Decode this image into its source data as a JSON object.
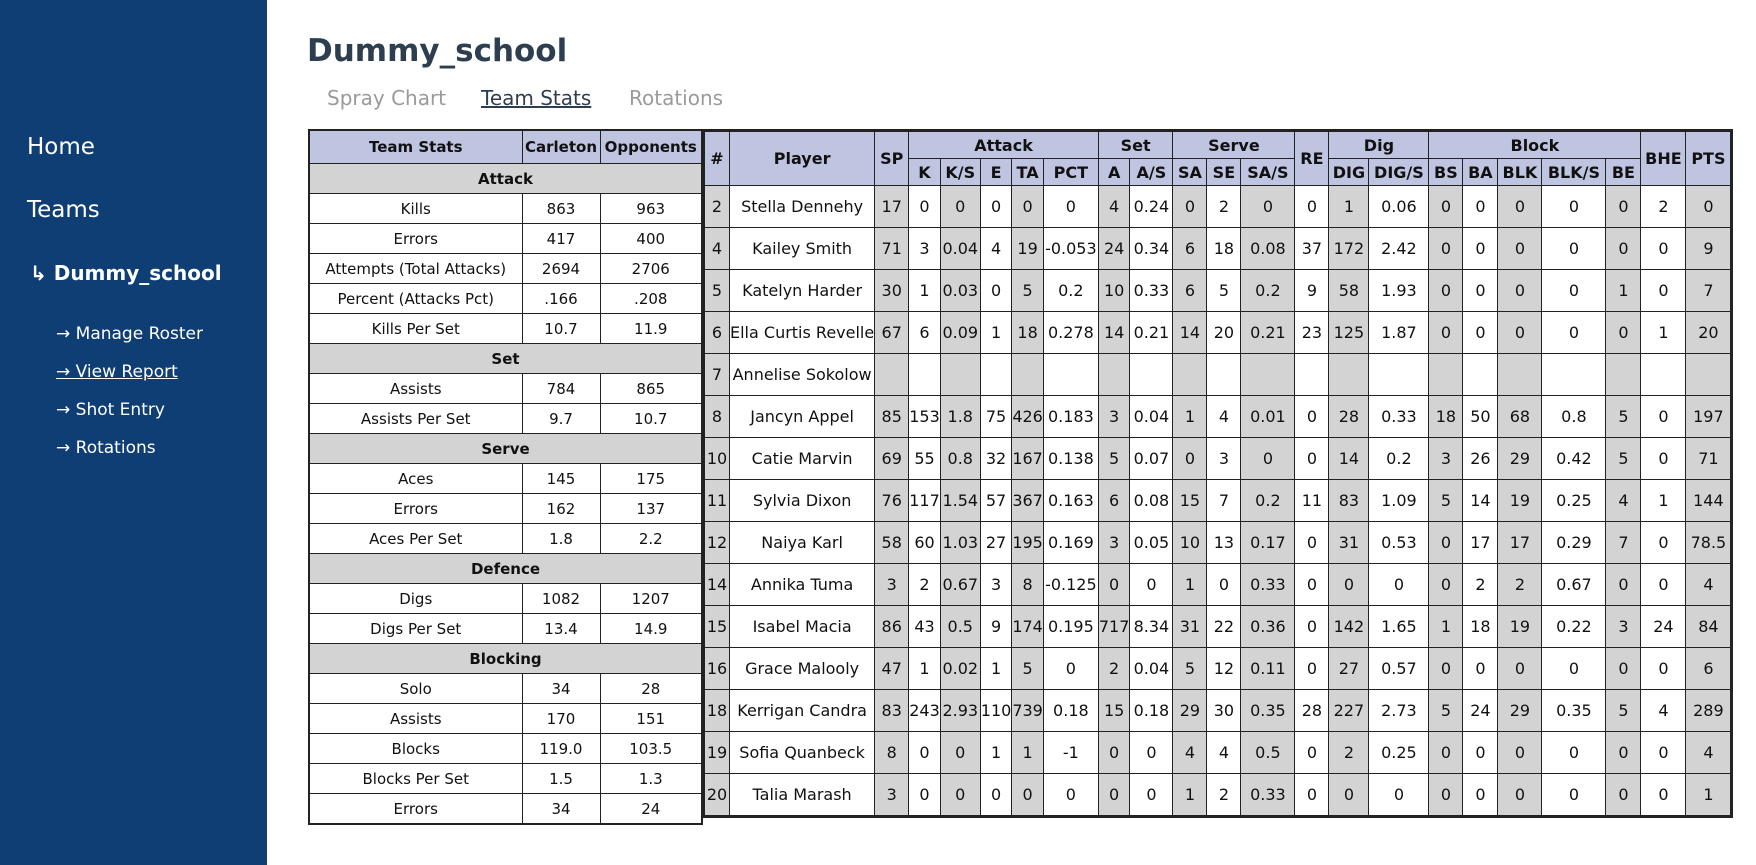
{
  "sidebar": {
    "links": [
      "Home",
      "Teams"
    ],
    "current": "↳ Dummy_school",
    "sublinks": [
      "→ Manage Roster",
      "→ View Report",
      "→ Shot Entry",
      "→ Rotations"
    ]
  },
  "header": {
    "title": "Dummy_school",
    "tabs": [
      "Spray Chart",
      "Team Stats",
      "Rotations"
    ]
  },
  "team_table": {
    "columns": [
      "Team Stats",
      "Carleton",
      "Opponents"
    ],
    "sections": [
      {
        "title": "Attack",
        "rows": [
          [
            "Kills",
            "863",
            "963"
          ],
          [
            "Errors",
            "417",
            "400"
          ],
          [
            "Attempts (Total Attacks)",
            "2694",
            "2706"
          ],
          [
            "Percent (Attacks Pct)",
            ".166",
            ".208"
          ],
          [
            "Kills Per Set",
            "10.7",
            "11.9"
          ]
        ]
      },
      {
        "title": "Set",
        "rows": [
          [
            "Assists",
            "784",
            "865"
          ],
          [
            "Assists Per Set",
            "9.7",
            "10.7"
          ]
        ]
      },
      {
        "title": "Serve",
        "rows": [
          [
            "Aces",
            "145",
            "175"
          ],
          [
            "Errors",
            "162",
            "137"
          ],
          [
            "Aces Per Set",
            "1.8",
            "2.2"
          ]
        ]
      },
      {
        "title": "Defence",
        "rows": [
          [
            "Digs",
            "1082",
            "1207"
          ],
          [
            "Digs Per Set",
            "13.4",
            "14.9"
          ]
        ]
      },
      {
        "title": "Blocking",
        "rows": [
          [
            "Solo",
            "34",
            "28"
          ],
          [
            "Assists",
            "170",
            "151"
          ],
          [
            "Blocks",
            "119.0",
            "103.5"
          ],
          [
            "Blocks Per Set",
            "1.5",
            "1.3"
          ],
          [
            "Errors",
            "34",
            "24"
          ]
        ]
      }
    ]
  },
  "player_table": {
    "header": [
      {
        "label": "#"
      },
      {
        "label": "Player"
      },
      {
        "label": "SP"
      },
      {
        "label": "Attack",
        "columns": [
          "K",
          "K/S",
          "E",
          "TA",
          "PCT"
        ]
      },
      {
        "label": "Set",
        "columns": [
          "A",
          "A/S"
        ]
      },
      {
        "label": "Serve",
        "columns": [
          "SA",
          "SE",
          "SA/S"
        ]
      },
      {
        "label": "RE"
      },
      {
        "label": "Dig",
        "columns": [
          "DIG",
          "DIG/S"
        ]
      },
      {
        "label": "Block",
        "columns": [
          "BS",
          "BA",
          "BLK",
          "BLK/S",
          "BE"
        ]
      },
      {
        "label": "BHE"
      },
      {
        "label": "PTS"
      }
    ],
    "rows": [
      [
        2,
        "Stella Dennehy",
        17,
        0,
        0,
        0,
        0,
        0,
        4,
        0.24,
        0,
        2,
        0,
        0,
        1,
        0.06,
        0,
        0,
        0,
        0,
        0,
        2,
        0
      ],
      [
        4,
        "Kailey Smith",
        71,
        3,
        0.04,
        4,
        19,
        -0.053,
        24,
        0.34,
        6,
        18,
        0.08,
        37,
        172,
        2.42,
        0,
        0,
        0,
        0,
        0,
        0,
        9
      ],
      [
        5,
        "Katelyn Harder",
        30,
        1,
        0.03,
        0,
        5,
        0.2,
        10,
        0.33,
        6,
        5,
        0.2,
        9,
        58,
        1.93,
        0,
        0,
        0,
        0,
        1,
        0,
        7
      ],
      [
        6,
        "Ella Curtis Revelle",
        67,
        6,
        0.09,
        1,
        18,
        0.278,
        14,
        0.21,
        14,
        20,
        0.21,
        23,
        125,
        1.87,
        0,
        0,
        0,
        0,
        0,
        1,
        20
      ],
      [
        7,
        "Annelise Sokolow",
        null,
        null,
        null,
        null,
        null,
        null,
        null,
        null,
        null,
        null,
        null,
        null,
        null,
        null,
        null,
        null,
        null,
        null,
        null,
        null,
        null
      ],
      [
        8,
        "Jancyn Appel",
        85,
        153,
        1.8,
        75,
        426,
        0.183,
        3,
        0.04,
        1,
        4,
        0.01,
        0,
        28,
        0.33,
        18,
        50,
        68,
        0.8,
        5,
        0,
        197
      ],
      [
        10,
        "Catie Marvin",
        69,
        55,
        0.8,
        32,
        167,
        0.138,
        5,
        0.07,
        0,
        3,
        0,
        0,
        14,
        0.2,
        3,
        26,
        29,
        0.42,
        5,
        0,
        71
      ],
      [
        11,
        "Sylvia Dixon",
        76,
        117,
        1.54,
        57,
        367,
        0.163,
        6,
        0.08,
        15,
        7,
        0.2,
        11,
        83,
        1.09,
        5,
        14,
        19,
        0.25,
        4,
        1,
        144
      ],
      [
        12,
        "Naiya Karl",
        58,
        60,
        1.03,
        27,
        195,
        0.169,
        3,
        0.05,
        10,
        13,
        0.17,
        0,
        31,
        0.53,
        0,
        17,
        17,
        0.29,
        7,
        0,
        78.5
      ],
      [
        14,
        "Annika Tuma",
        3,
        2,
        0.67,
        3,
        8,
        -0.125,
        0,
        0,
        1,
        0,
        0.33,
        0,
        0,
        0,
        0,
        2,
        2,
        0.67,
        0,
        0,
        4
      ],
      [
        15,
        "Isabel Macia",
        86,
        43,
        0.5,
        9,
        174,
        0.195,
        717,
        8.34,
        31,
        22,
        0.36,
        0,
        142,
        1.65,
        1,
        18,
        19,
        0.22,
        3,
        24,
        84
      ],
      [
        16,
        "Grace Malooly",
        47,
        1,
        0.02,
        1,
        5,
        0,
        2,
        0.04,
        5,
        12,
        0.11,
        0,
        27,
        0.57,
        0,
        0,
        0,
        0,
        0,
        0,
        6
      ],
      [
        18,
        "Kerrigan Candra",
        83,
        243,
        2.93,
        110,
        739,
        0.18,
        15,
        0.18,
        29,
        30,
        0.35,
        28,
        227,
        2.73,
        5,
        24,
        29,
        0.35,
        5,
        4,
        289
      ],
      [
        19,
        "Sofia Quanbeck",
        8,
        0,
        0,
        1,
        1,
        -1,
        0,
        0,
        4,
        4,
        0.5,
        0,
        2,
        0.25,
        0,
        0,
        0,
        0,
        0,
        0,
        4
      ],
      [
        20,
        "Talia Marash",
        3,
        0,
        0,
        0,
        0,
        0,
        0,
        0,
        1,
        2,
        0.33,
        0,
        0,
        0,
        0,
        0,
        0,
        0,
        0,
        0,
        1
      ]
    ]
  }
}
